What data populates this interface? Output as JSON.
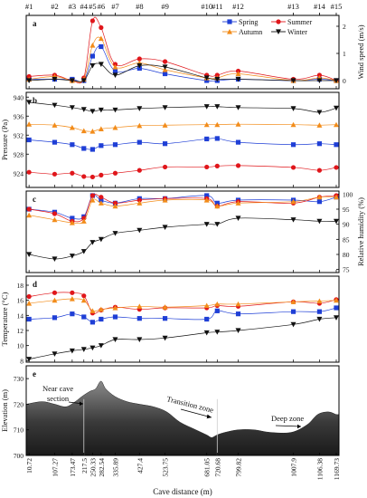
{
  "figure": {
    "colors": {
      "Spring": "#1f3fd6",
      "Summer": "#e0161b",
      "Autumn": "#f28c1a",
      "Winter": "#111111"
    },
    "markers": {
      "Spring": "square",
      "Summer": "circle",
      "Autumn": "triangle-up",
      "Winter": "triangle-down"
    },
    "legend": {
      "position": "top-right",
      "entries": [
        "Spring",
        "Summer",
        "Autumn",
        "Winter"
      ]
    }
  },
  "chart_data": [
    {
      "type": "line",
      "panel": "a",
      "site_labels": [
        "#1",
        "#2",
        "#3",
        "#4",
        "#5",
        "#6",
        "#7",
        "#8",
        "#9",
        "#10",
        "#11",
        "#12",
        "#13",
        "#14",
        "#15"
      ],
      "x": [
        10.72,
        107.27,
        173.47,
        217.5,
        250.33,
        282.54,
        335.89,
        427.4,
        523.75,
        681.05,
        720.68,
        799.82,
        1007.9,
        1106.38,
        1169.73
      ],
      "ylabel": "Wind speed (m/s)",
      "ylim": [
        -0.3,
        2.4
      ],
      "yticks": [
        0,
        1,
        2
      ],
      "y_axis_side": "right",
      "series": [
        {
          "name": "Spring",
          "values": [
            0.05,
            0.05,
            0.05,
            0.0,
            0.9,
            1.25,
            0.35,
            0.45,
            0.25,
            0.0,
            0.0,
            0.05,
            0.0,
            0.05,
            0.0
          ]
        },
        {
          "name": "Summer",
          "values": [
            0.15,
            0.2,
            0.0,
            0.1,
            2.2,
            1.95,
            0.6,
            0.8,
            0.7,
            0.2,
            0.2,
            0.35,
            0.05,
            0.2,
            0.0
          ]
        },
        {
          "name": "Autumn",
          "values": [
            0.05,
            0.15,
            0.0,
            0.05,
            1.3,
            1.55,
            0.5,
            0.65,
            0.4,
            0.1,
            0.1,
            0.25,
            0.0,
            0.1,
            0.0
          ]
        },
        {
          "name": "Winter",
          "values": [
            0.0,
            0.05,
            0.0,
            0.0,
            0.55,
            0.6,
            0.2,
            0.55,
            0.5,
            0.1,
            0.05,
            0.05,
            0.0,
            0.0,
            0.0
          ]
        }
      ]
    },
    {
      "type": "line",
      "panel": "b",
      "ylabel": "Pressure (Pa)",
      "ylim": [
        921,
        941
      ],
      "yticks": [
        924,
        928,
        932,
        936,
        940
      ],
      "y_axis_side": "left",
      "series": [
        {
          "name": "Spring",
          "values": [
            931,
            930.5,
            930,
            929.2,
            929,
            929.8,
            930,
            930.5,
            930.2,
            931.2,
            931.3,
            930.5,
            930,
            930.2,
            930
          ]
        },
        {
          "name": "Summer",
          "values": [
            924.2,
            923.8,
            924,
            923.3,
            923.2,
            923.6,
            924,
            924.6,
            925.3,
            925.3,
            925.5,
            925.6,
            925.2,
            924.6,
            925.2
          ]
        },
        {
          "name": "Autumn",
          "values": [
            934.3,
            934.1,
            933.6,
            932.9,
            932.8,
            933.3,
            933.6,
            934.0,
            934.1,
            934.2,
            934.2,
            934.3,
            934.2,
            934.1,
            934.2
          ]
        },
        {
          "name": "Winter",
          "values": [
            938.9,
            938.3,
            937.8,
            937.4,
            937.0,
            937.3,
            937.3,
            937.6,
            937.8,
            938.0,
            938.0,
            937.8,
            937.6,
            936.8,
            937.7
          ]
        }
      ]
    },
    {
      "type": "line",
      "panel": "c",
      "ylabel": "Relative humidity (%)",
      "ylim": [
        74,
        101
      ],
      "yticks": [
        75,
        80,
        85,
        90,
        95,
        100
      ],
      "y_axis_side": "right",
      "series": [
        {
          "name": "Spring",
          "values": [
            95,
            94,
            92,
            92.5,
            99.5,
            98,
            97,
            98.5,
            98.5,
            99.5,
            97,
            98,
            98,
            97.5,
            99
          ]
        },
        {
          "name": "Summer",
          "values": [
            95,
            93.5,
            91,
            92,
            99.5,
            99,
            97,
            98,
            98.5,
            98.5,
            96,
            97.5,
            97,
            99,
            99.5
          ]
        },
        {
          "name": "Autumn",
          "values": [
            93,
            91.5,
            90.5,
            91,
            98,
            97,
            96,
            97,
            98,
            98,
            96,
            97,
            97.5,
            99,
            99
          ]
        },
        {
          "name": "Winter",
          "values": [
            80,
            78.5,
            79.5,
            81,
            84,
            85,
            87,
            88,
            89,
            90,
            90,
            92,
            91.5,
            91,
            91
          ]
        }
      ]
    },
    {
      "type": "line",
      "panel": "d",
      "ylabel": "Temperature (°C)",
      "ylim": [
        7.8,
        19.2
      ],
      "yticks": [
        8,
        10,
        12,
        14,
        16,
        18
      ],
      "y_axis_side": "left",
      "series": [
        {
          "name": "Spring",
          "values": [
            13.5,
            13.7,
            14.2,
            13.8,
            13.1,
            13.5,
            13.8,
            13.6,
            13.6,
            13.5,
            14.6,
            14.2,
            14.5,
            14.5,
            15.0
          ]
        },
        {
          "name": "Summer",
          "values": [
            16.5,
            17.0,
            17.0,
            16.6,
            14.3,
            14.7,
            15.1,
            14.8,
            15.0,
            15.0,
            15.3,
            15.2,
            15.8,
            15.6,
            16.1
          ]
        },
        {
          "name": "Autumn",
          "values": [
            15.6,
            16.0,
            16.2,
            16.0,
            14.6,
            14.8,
            15.0,
            15.2,
            15.1,
            15.3,
            15.5,
            15.5,
            15.8,
            15.9,
            16.0
          ]
        },
        {
          "name": "Winter",
          "values": [
            8.2,
            8.9,
            9.3,
            9.5,
            9.7,
            10.0,
            10.8,
            10.8,
            11.0,
            11.7,
            11.8,
            12.0,
            12.8,
            13.5,
            13.7
          ]
        }
      ]
    },
    {
      "type": "area",
      "panel": "e",
      "xlabel": "Cave distance (m)",
      "ylabel": "Elevation (m)",
      "ylim": [
        700,
        735
      ],
      "yticks": [
        700,
        710,
        720,
        730
      ],
      "xtick_labels": [
        "10.72",
        "107.27",
        "173.47",
        "217.5",
        "250.33",
        "282.54",
        "335.89",
        "427.4",
        "523.75",
        "681.05",
        "720.68",
        "799.82",
        "1007.9",
        "1106.38",
        "1169.73"
      ],
      "profile": {
        "x": [
          0,
          60,
          107,
          150,
          185,
          210,
          240,
          262,
          282,
          300,
          335,
          380,
          427,
          480,
          530,
          580,
          640,
          681,
          700,
          720,
          750,
          800,
          860,
          920,
          1000,
          1060,
          1100,
          1140,
          1169,
          1180
        ],
        "elevation": [
          720,
          721,
          720,
          719,
          721,
          723,
          725,
          726,
          729,
          726,
          723,
          721,
          720,
          719,
          717,
          713,
          710,
          708,
          707,
          708,
          709,
          710,
          710,
          709,
          709,
          712,
          716,
          717,
          716,
          716
        ]
      },
      "annotations": [
        "Near cave section",
        "Transition zone",
        "Deep zone"
      ]
    }
  ],
  "panel_labels": [
    "a",
    "b",
    "c",
    "d",
    "e"
  ]
}
